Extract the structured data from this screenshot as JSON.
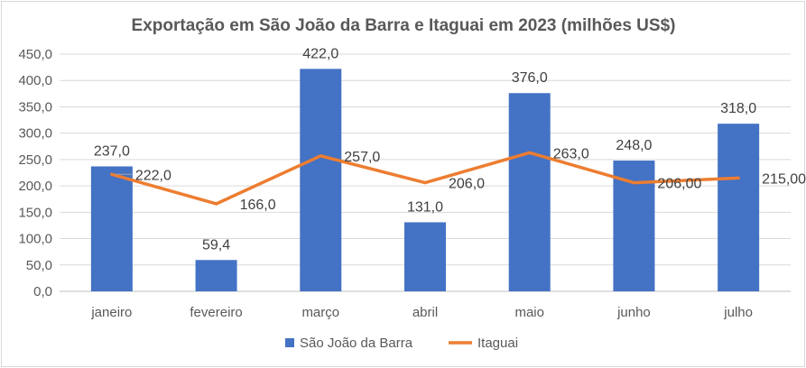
{
  "chart_data": {
    "type": "bar",
    "title": "Exportação em São João da Barra e Itaguai em 2023 (milhões US$)",
    "categories": [
      "janeiro",
      "fevereiro",
      "março",
      "abril",
      "maio",
      "junho",
      "julho"
    ],
    "ylim": [
      0,
      450
    ],
    "yticks": [
      "0,0",
      "50,0",
      "100,0",
      "150,0",
      "200,0",
      "250,0",
      "300,0",
      "350,0",
      "400,0",
      "450,0"
    ],
    "grid": true,
    "legend_position": "bottom",
    "series": [
      {
        "name": "São João da Barra",
        "type": "bar",
        "color": "#4472c4",
        "values": [
          237.0,
          59.4,
          422.0,
          131.0,
          376.0,
          248.0,
          318.0
        ],
        "labels": [
          "237,0",
          "59,4",
          "422,0",
          "131,0",
          "376,0",
          "248,0",
          "318,0"
        ]
      },
      {
        "name": "Itaguai",
        "type": "line",
        "color": "#ed7d31",
        "values": [
          222.0,
          166.0,
          257.0,
          206.0,
          263.0,
          206.0,
          215.0
        ],
        "labels": [
          "222,0",
          "166,0",
          "257,0",
          "206,0",
          "263,0",
          "206,00",
          "215,00"
        ]
      }
    ]
  }
}
